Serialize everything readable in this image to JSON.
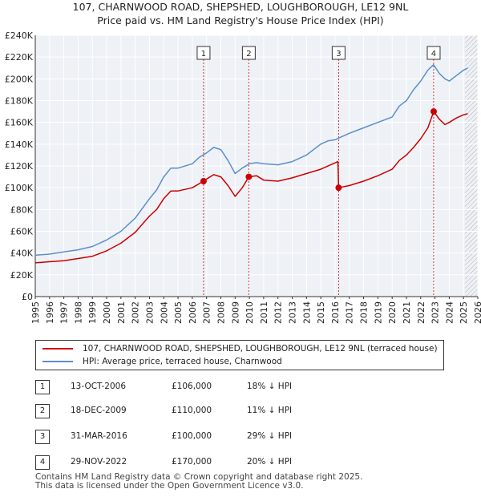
{
  "header": {
    "title": "107, CHARNWOOD ROAD, SHEPSHED, LOUGHBOROUGH, LE12 9NL",
    "subtitle": "Price paid vs. HM Land Registry's House Price Index (HPI)"
  },
  "legend": {
    "property_label": "107, CHARNWOOD ROAD, SHEPSHED, LOUGHBOROUGH, LE12 9NL (terraced house)",
    "hpi_label": "HPI: Average price, terraced house, Charnwood"
  },
  "colors": {
    "property": "#cc0000",
    "hpi": "#5b8fcc",
    "marker_line": "#cc0000"
  },
  "transactions": [
    {
      "num": "1",
      "date": "13-OCT-2006",
      "price": "£106,000",
      "hpi": "18% ↓ HPI"
    },
    {
      "num": "2",
      "date": "18-DEC-2009",
      "price": "£110,000",
      "hpi": "11% ↓ HPI"
    },
    {
      "num": "3",
      "date": "31-MAR-2016",
      "price": "£100,000",
      "hpi": "29% ↓ HPI"
    },
    {
      "num": "4",
      "date": "29-NOV-2022",
      "price": "£170,000",
      "hpi": "20% ↓ HPI"
    }
  ],
  "footer": {
    "line1": "Contains HM Land Registry data © Crown copyright and database right 2025.",
    "line2": "This data is licensed under the Open Government Licence v3.0."
  },
  "chart_data": {
    "type": "line",
    "title": "107, CHARNWOOD ROAD, SHEPSHED, LOUGHBOROUGH, LE12 9NL",
    "subtitle": "Price paid vs. HM Land Registry's House Price Index (HPI)",
    "xlim": [
      1995,
      2026
    ],
    "ylim": [
      0,
      240000
    ],
    "x_ticks": [
      "1995",
      "1996",
      "1997",
      "1998",
      "1999",
      "2000",
      "2001",
      "2002",
      "2003",
      "2004",
      "2005",
      "2006",
      "2007",
      "2008",
      "2009",
      "2010",
      "2011",
      "2012",
      "2013",
      "2014",
      "2015",
      "2016",
      "2017",
      "2018",
      "2019",
      "2020",
      "2021",
      "2022",
      "2023",
      "2024",
      "2025",
      "2026"
    ],
    "y_ticks": [
      {
        "value": 0,
        "label": "£0"
      },
      {
        "value": 20000,
        "label": "£20K"
      },
      {
        "value": 40000,
        "label": "£40K"
      },
      {
        "value": 60000,
        "label": "£60K"
      },
      {
        "value": 80000,
        "label": "£80K"
      },
      {
        "value": 100000,
        "label": "£100K"
      },
      {
        "value": 120000,
        "label": "£120K"
      },
      {
        "value": 140000,
        "label": "£140K"
      },
      {
        "value": 160000,
        "label": "£160K"
      },
      {
        "value": 180000,
        "label": "£180K"
      },
      {
        "value": 200000,
        "label": "£200K"
      },
      {
        "value": 220000,
        "label": "£220K"
      },
      {
        "value": 240000,
        "label": "£240K"
      }
    ],
    "grid": true,
    "future_hatch_from": 2025.1,
    "series": [
      {
        "name": "HPI: Average price, terraced house, Charnwood",
        "color": "#5b8fcc",
        "x": [
          1995,
          1996,
          1997,
          1998,
          1999,
          2000,
          2001,
          2002,
          2003,
          2003.5,
          2004,
          2004.5,
          2005,
          2006,
          2006.5,
          2007,
          2007.5,
          2008,
          2008.5,
          2009,
          2009.5,
          2010,
          2010.5,
          2011,
          2012,
          2013,
          2014,
          2015,
          2015.5,
          2016,
          2016.5,
          2017,
          2018,
          2019,
          2020,
          2020.5,
          2021,
          2021.5,
          2022,
          2022.5,
          2022.9,
          2023.3,
          2023.7,
          2024,
          2024.5,
          2025,
          2025.3
        ],
        "values": [
          38000,
          39000,
          41000,
          43000,
          46000,
          52000,
          60000,
          72000,
          90000,
          98000,
          110000,
          118000,
          118000,
          122000,
          128000,
          132000,
          137000,
          135000,
          125000,
          113000,
          118000,
          122000,
          123000,
          122000,
          121000,
          124000,
          130000,
          140000,
          143000,
          144000,
          147000,
          150000,
          155000,
          160000,
          165000,
          175000,
          180000,
          190000,
          198000,
          208000,
          213000,
          205000,
          200000,
          198000,
          203000,
          208000,
          210000
        ]
      },
      {
        "name": "107, CHARNWOOD ROAD, SHEPSHED, LOUGHBOROUGH, LE12 9NL (terraced house)",
        "color": "#cc0000",
        "x": [
          1995,
          1996,
          1997,
          1998,
          1999,
          2000,
          2001,
          2002,
          2003,
          2003.5,
          2004,
          2004.5,
          2005,
          2006,
          2006.79,
          2007,
          2007.5,
          2008,
          2008.5,
          2009,
          2009.5,
          2009.96,
          2010.5,
          2011,
          2012,
          2013,
          2014,
          2015,
          2016.2,
          2016.25,
          2017,
          2018,
          2019,
          2020,
          2020.5,
          2021,
          2021.5,
          2022,
          2022.5,
          2022.91,
          2023.3,
          2023.7,
          2024,
          2024.5,
          2025,
          2025.3
        ],
        "values": [
          31000,
          32000,
          33000,
          35000,
          37000,
          42000,
          49000,
          59000,
          74000,
          80000,
          90000,
          97000,
          97000,
          100000,
          106000,
          108000,
          112000,
          110000,
          102000,
          92000,
          100000,
          110000,
          111000,
          107000,
          106000,
          109000,
          113000,
          117000,
          124000,
          100000,
          102000,
          106000,
          111000,
          117000,
          125000,
          130000,
          137000,
          145000,
          155000,
          170000,
          163000,
          158000,
          160000,
          164000,
          167000,
          168000
        ]
      }
    ],
    "markers": [
      {
        "label": "1",
        "x": 2006.79,
        "value": 106000
      },
      {
        "label": "2",
        "x": 2009.96,
        "value": 110000
      },
      {
        "label": "3",
        "x": 2016.25,
        "value": 100000
      },
      {
        "label": "4",
        "x": 2022.91,
        "value": 170000
      }
    ]
  }
}
